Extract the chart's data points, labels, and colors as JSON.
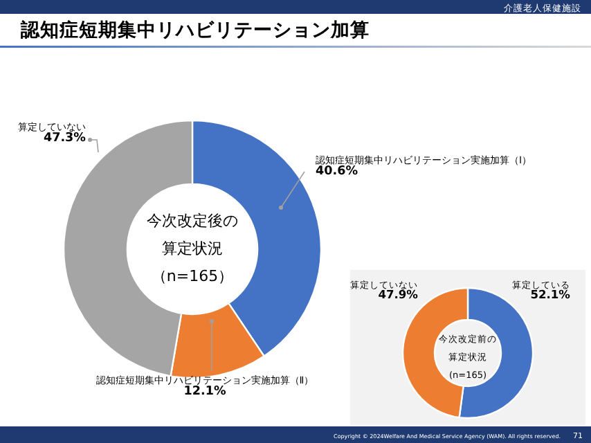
{
  "chart_data": [
    {
      "type": "donut",
      "title": "認知症短期集中リハビリテーション加算",
      "subtitle": "介護老人保健施設",
      "categories": [
        "認知症短期集中リハビリテーション実施加算（Ⅰ）",
        "認知症短期集中リハビリテーション実施加算（Ⅱ）",
        "算定していない"
      ],
      "values": [
        40.6,
        12.1,
        47.3
      ],
      "colors": [
        "#4472c4",
        "#ed7d31",
        "#a5a5a5"
      ],
      "value_labels": [
        "40.6%",
        "12.1%",
        "47.3%"
      ],
      "annotations": [
        "今次改定後の",
        "算定状況",
        "（n=165）",
        "Copyright © 2024Welfare And Medical Service Agency (WAM). All rights reserved.",
        "71"
      ]
    },
    {
      "type": "donut",
      "categories": [
        "算定している",
        "算定していない"
      ],
      "values": [
        52.1,
        47.9
      ],
      "colors": [
        "#4472c4",
        "#ed7d31"
      ],
      "value_labels": [
        "52.1%",
        "47.9%"
      ],
      "annotations": [
        "今次改定前の",
        "算定状況",
        "(n=165)"
      ]
    }
  ]
}
